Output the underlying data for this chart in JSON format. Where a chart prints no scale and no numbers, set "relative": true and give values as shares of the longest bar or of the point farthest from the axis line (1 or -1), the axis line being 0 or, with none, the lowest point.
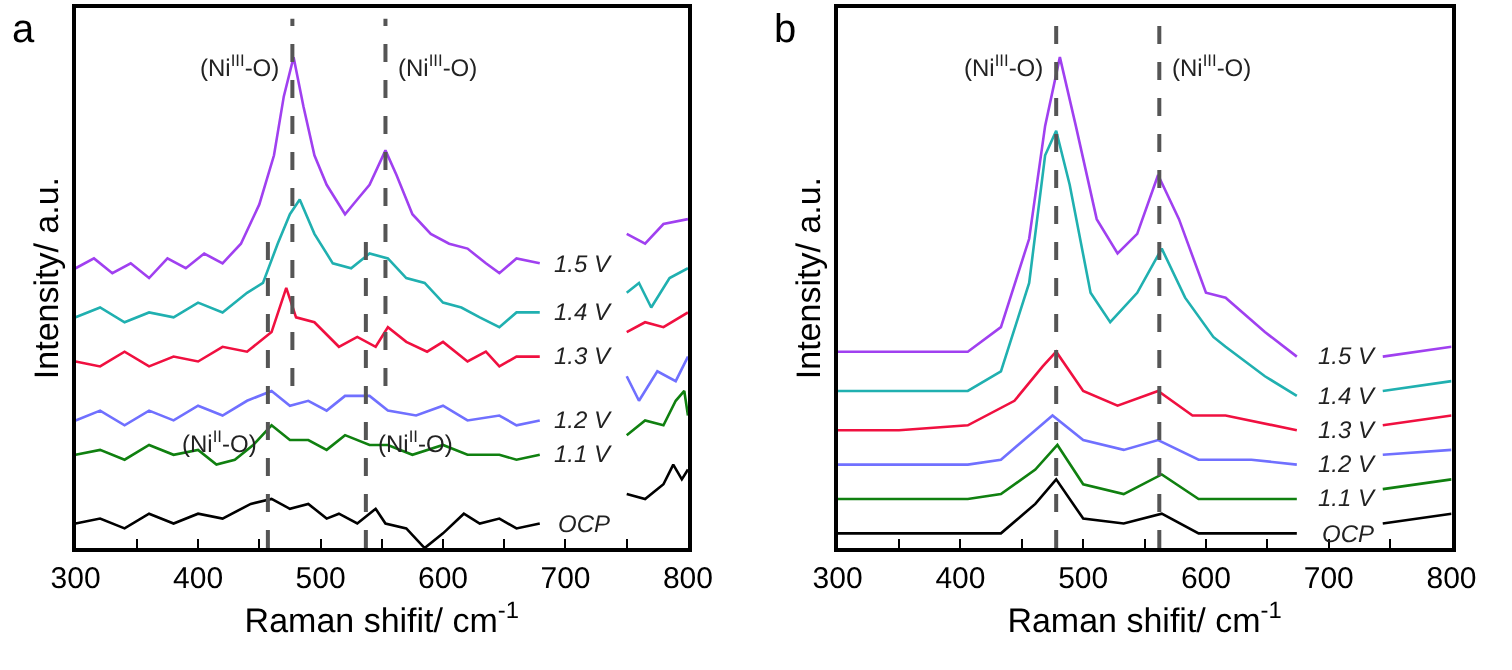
{
  "chart_data": [
    {
      "type": "line",
      "title": "a",
      "xlabel": "Raman shifit/ cm$^{-1}$",
      "ylabel": "Intensity/ a.u.",
      "relative": true,
      "tick_labels": "x",
      "legend": false,
      "marker": "none",
      "line_style": "solid",
      "xlim": [
        300,
        800
      ],
      "xticks": [
        300,
        {
          "value": 350,
          "label": null
        },
        400,
        {
          "value": 450,
          "label": null
        },
        500,
        {
          "value": 550,
          "label": null
        },
        600,
        {
          "value": 650,
          "label": null
        },
        700,
        {
          "value": 750,
          "label": null
        },
        800
      ],
      "series": [
        {
          "name": "1.5 V",
          "color": "#a040f0",
          "x": [
            300,
            315,
            330,
            345,
            360,
            375,
            390,
            405,
            420,
            435,
            450,
            462,
            470,
            478,
            486,
            495,
            505,
            520,
            530,
            540,
            553,
            562,
            575,
            590,
            605,
            620,
            635,
            646,
            660,
            679,
            715,
            750,
            765,
            780,
            800
          ],
          "values": [
            0.57,
            0.59,
            0.56,
            0.58,
            0.55,
            0.59,
            0.57,
            0.6,
            0.58,
            0.62,
            0.7,
            0.8,
            0.92,
            1.0,
            0.9,
            0.8,
            0.74,
            0.68,
            0.71,
            0.74,
            0.81,
            0.76,
            0.68,
            0.64,
            0.62,
            0.61,
            0.58,
            0.56,
            0.59,
            0.58,
            null,
            0.64,
            0.62,
            0.66,
            0.67
          ]
        },
        {
          "name": "1.4 V",
          "color": "#20b0b0",
          "x": [
            300,
            320,
            340,
            360,
            380,
            400,
            420,
            440,
            453,
            465,
            475,
            483,
            495,
            510,
            525,
            540,
            555,
            570,
            585,
            600,
            615,
            630,
            646,
            660,
            679,
            715,
            750,
            760,
            770,
            785,
            800
          ],
          "values": [
            0.47,
            0.49,
            0.46,
            0.48,
            0.47,
            0.5,
            0.48,
            0.52,
            0.54,
            0.62,
            0.68,
            0.71,
            0.64,
            0.58,
            0.57,
            0.6,
            0.59,
            0.55,
            0.54,
            0.5,
            0.49,
            0.47,
            0.45,
            0.48,
            0.48,
            null,
            0.52,
            0.54,
            0.49,
            0.55,
            0.57
          ]
        },
        {
          "name": "1.3 V",
          "color": "#f01040",
          "x": [
            300,
            320,
            340,
            360,
            380,
            400,
            420,
            440,
            460,
            472,
            480,
            495,
            515,
            530,
            545,
            555,
            570,
            587,
            600,
            620,
            635,
            646,
            660,
            679,
            715,
            750,
            765,
            780,
            800
          ],
          "values": [
            0.38,
            0.37,
            0.4,
            0.37,
            0.39,
            0.38,
            0.41,
            0.4,
            0.44,
            0.53,
            0.47,
            0.46,
            0.41,
            0.43,
            0.41,
            0.45,
            0.42,
            0.4,
            0.42,
            0.38,
            0.4,
            0.37,
            0.39,
            0.39,
            null,
            0.44,
            0.46,
            0.45,
            0.48
          ]
        },
        {
          "name": "1.2 V",
          "color": "#7070ff",
          "x": [
            300,
            320,
            340,
            360,
            380,
            400,
            420,
            440,
            460,
            475,
            490,
            505,
            520,
            540,
            555,
            578,
            600,
            620,
            646,
            660,
            679,
            715,
            750,
            760,
            775,
            790,
            800
          ],
          "values": [
            0.26,
            0.28,
            0.25,
            0.28,
            0.26,
            0.29,
            0.27,
            0.3,
            0.32,
            0.29,
            0.3,
            0.28,
            0.31,
            0.31,
            0.28,
            0.27,
            0.29,
            0.26,
            0.27,
            0.25,
            0.26,
            null,
            0.35,
            0.3,
            0.36,
            0.34,
            0.39
          ]
        },
        {
          "name": "1.1 V",
          "color": "#108010",
          "x": [
            300,
            320,
            340,
            360,
            380,
            400,
            415,
            430,
            445,
            460,
            475,
            490,
            505,
            520,
            540,
            555,
            575,
            600,
            620,
            646,
            660,
            679,
            715,
            750,
            765,
            780,
            790,
            797,
            800
          ],
          "values": [
            0.19,
            0.2,
            0.18,
            0.21,
            0.19,
            0.2,
            0.17,
            0.18,
            0.21,
            0.25,
            0.22,
            0.22,
            0.2,
            0.23,
            0.21,
            0.21,
            0.19,
            0.21,
            0.19,
            0.19,
            0.18,
            0.19,
            null,
            0.23,
            0.26,
            0.25,
            0.3,
            0.32,
            0.27
          ]
        },
        {
          "name": "OCP",
          "color": "#000000",
          "x": [
            300,
            320,
            340,
            360,
            380,
            400,
            420,
            443,
            460,
            475,
            490,
            505,
            515,
            530,
            545,
            553,
            570,
            585,
            600,
            617,
            630,
            646,
            660,
            679,
            715,
            750,
            765,
            780,
            788,
            795,
            800
          ],
          "values": [
            0.05,
            0.06,
            0.04,
            0.07,
            0.05,
            0.07,
            0.06,
            0.09,
            0.1,
            0.08,
            0.09,
            0.06,
            0.07,
            0.05,
            0.08,
            0.05,
            0.04,
            0.0,
            0.03,
            0.07,
            0.05,
            0.06,
            0.04,
            0.05,
            null,
            0.11,
            0.1,
            0.13,
            0.17,
            0.14,
            0.16
          ]
        }
      ],
      "ref_lines": [
        {
          "axis": "x",
          "value": 477,
          "color": "#555555",
          "line_style": "dashed",
          "label": "(Ni$^{III}$-O)"
        },
        {
          "axis": "x",
          "value": 553,
          "color": "#555555",
          "line_style": "dashed",
          "label": "(Ni$^{III}$-O)"
        },
        {
          "axis": "x",
          "value": 457,
          "color": "#555555",
          "line_style": "dashed",
          "label": "(Ni$^{II}$-O)"
        },
        {
          "axis": "x",
          "value": 537,
          "color": "#555555",
          "line_style": "dashed",
          "label": "(Ni$^{II}$-O)"
        }
      ]
    },
    {
      "type": "line",
      "title": "b",
      "xlabel": "Raman shifit/ cm$^{-1}$",
      "ylabel": "Intensity/ a.u.",
      "relative": true,
      "tick_labels": "x",
      "legend": false,
      "marker": "none",
      "line_style": "solid",
      "xlim": [
        300,
        800
      ],
      "xticks": [
        300,
        {
          "value": 350,
          "label": null
        },
        400,
        {
          "value": 450,
          "label": null
        },
        500,
        {
          "value": 550,
          "label": null
        },
        600,
        {
          "value": 650,
          "label": null
        },
        700,
        {
          "value": 750,
          "label": null
        },
        800
      ],
      "series": [
        {
          "name": "1.5 V",
          "color": "#a040f0",
          "x": [
            300,
            350,
            406,
            433,
            456,
            469,
            481,
            494,
            511,
            528,
            544,
            561,
            578,
            600,
            616,
            648,
            674,
            715,
            744,
            800
          ],
          "values": [
            0.4,
            0.4,
            0.4,
            0.45,
            0.63,
            0.86,
            1.0,
            0.86,
            0.67,
            0.6,
            0.64,
            0.76,
            0.67,
            0.52,
            0.51,
            0.44,
            0.39,
            null,
            0.39,
            0.41
          ]
        },
        {
          "name": "1.4 V",
          "color": "#20b0b0",
          "x": [
            300,
            350,
            406,
            433,
            456,
            469,
            478,
            489,
            506,
            522,
            544,
            564,
            583,
            606,
            616,
            648,
            674,
            715,
            744,
            800
          ],
          "values": [
            0.32,
            0.32,
            0.32,
            0.36,
            0.54,
            0.8,
            0.85,
            0.74,
            0.52,
            0.46,
            0.52,
            0.61,
            0.51,
            0.43,
            0.41,
            0.35,
            0.31,
            null,
            0.32,
            0.34
          ]
        },
        {
          "name": "1.3 V",
          "color": "#f01040",
          "x": [
            300,
            350,
            406,
            444,
            467,
            478,
            500,
            528,
            561,
            589,
            616,
            674,
            715,
            744,
            800
          ],
          "values": [
            0.24,
            0.24,
            0.25,
            0.3,
            0.37,
            0.4,
            0.32,
            0.29,
            0.32,
            0.27,
            0.27,
            0.24,
            null,
            0.25,
            0.27
          ]
        },
        {
          "name": "1.2 V",
          "color": "#7070ff",
          "x": [
            300,
            350,
            406,
            433,
            461,
            475,
            500,
            533,
            561,
            594,
            637,
            674,
            715,
            744,
            800
          ],
          "values": [
            0.17,
            0.17,
            0.17,
            0.18,
            0.24,
            0.27,
            0.22,
            0.2,
            0.22,
            0.18,
            0.18,
            0.17,
            null,
            0.19,
            0.2
          ]
        },
        {
          "name": "1.1 V",
          "color": "#108010",
          "x": [
            300,
            350,
            406,
            433,
            461,
            479,
            500,
            533,
            564,
            594,
            637,
            674,
            715,
            744,
            800
          ],
          "values": [
            0.1,
            0.1,
            0.1,
            0.11,
            0.16,
            0.21,
            0.13,
            0.11,
            0.15,
            0.1,
            0.1,
            0.1,
            null,
            0.12,
            0.14
          ]
        },
        {
          "name": "OCP",
          "color": "#000000",
          "x": [
            300,
            350,
            406,
            433,
            461,
            478,
            500,
            533,
            564,
            594,
            637,
            674,
            715,
            744,
            800
          ],
          "values": [
            0.03,
            0.03,
            0.03,
            0.03,
            0.09,
            0.14,
            0.06,
            0.05,
            0.07,
            0.03,
            0.03,
            0.03,
            null,
            0.05,
            0.07
          ]
        }
      ],
      "ref_lines": [
        {
          "axis": "x",
          "value": 478,
          "color": "#555555",
          "line_style": "dashed",
          "label": "(Ni$^{III}$-O)"
        },
        {
          "axis": "x",
          "value": 562,
          "color": "#555555",
          "line_style": "dashed",
          "label": "(Ni$^{III}$-O)"
        }
      ]
    }
  ]
}
